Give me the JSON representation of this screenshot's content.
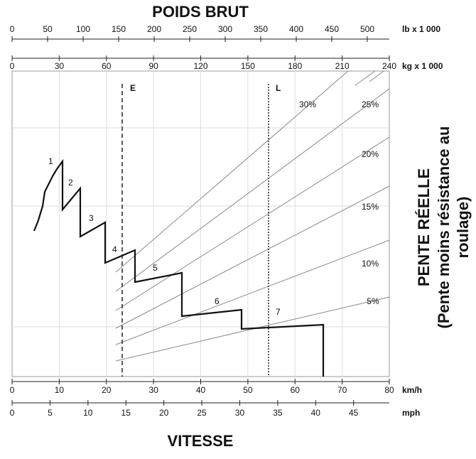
{
  "header": {
    "title": "POIDS BRUT"
  },
  "footer": {
    "title": "VITESSE"
  },
  "axes": {
    "lb": {
      "unit": "lb x 1 000",
      "ticks": [
        "0",
        "50",
        "100",
        "150",
        "200",
        "250",
        "300",
        "350",
        "400",
        "450",
        "500"
      ]
    },
    "kg": {
      "unit": "kg x 1 000",
      "ticks": [
        "0",
        "30",
        "60",
        "90",
        "120",
        "150",
        "180",
        "210",
        "240"
      ]
    },
    "kmh": {
      "unit": "km/h",
      "ticks": [
        "0",
        "10",
        "20",
        "30",
        "40",
        "50",
        "60",
        "70",
        "80"
      ]
    },
    "mph": {
      "unit": "mph",
      "ticks": [
        "0",
        "5",
        "10",
        "15",
        "20",
        "25",
        "30",
        "35",
        "40",
        "45"
      ]
    }
  },
  "markers": [
    "E",
    "L"
  ],
  "gears": [
    "1",
    "2",
    "3",
    "4",
    "5",
    "6",
    "7"
  ],
  "grades": [
    "30%",
    "25%",
    "20%",
    "15%",
    "10%",
    "5%"
  ],
  "side": {
    "title": "PENTE RÉELLE",
    "subtitle_1": "(Pente moins résistance au",
    "subtitle_2": "roulage)"
  }
}
